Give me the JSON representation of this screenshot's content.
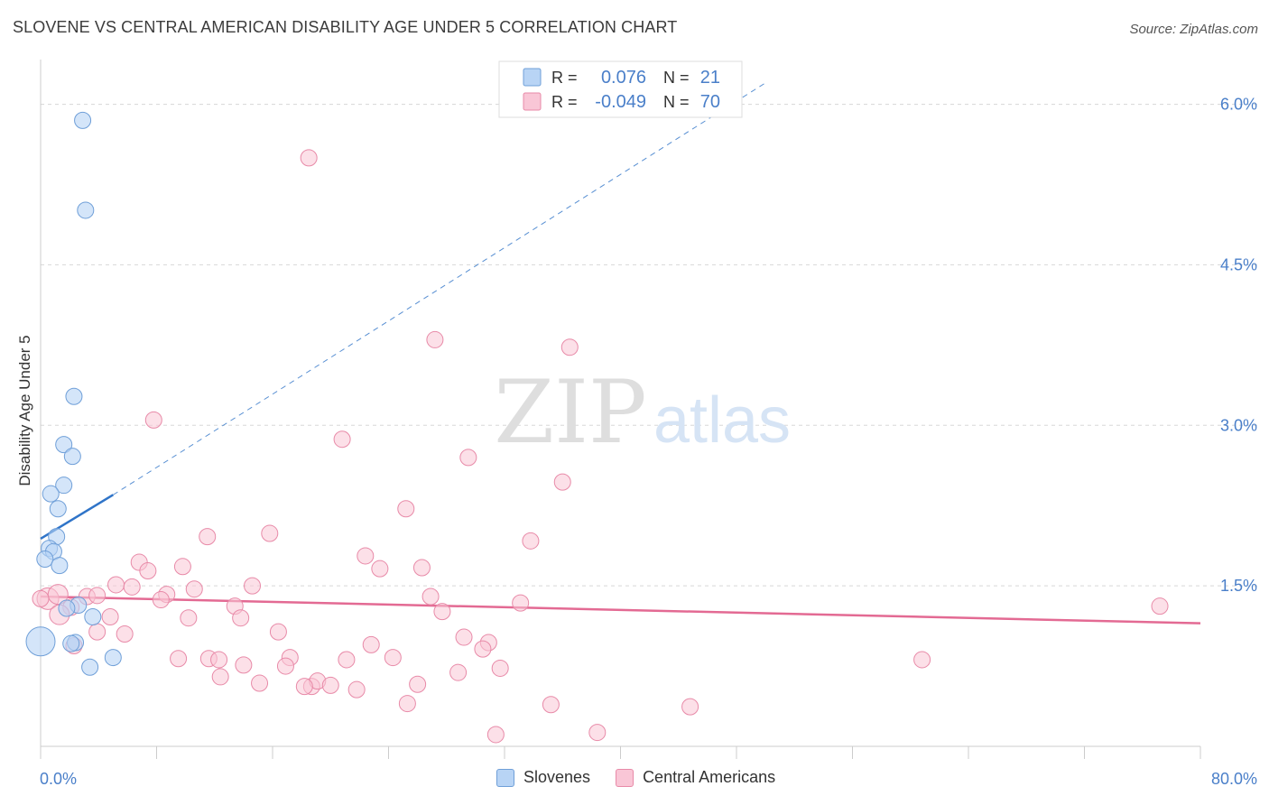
{
  "title": "SLOVENE VS CENTRAL AMERICAN DISABILITY AGE UNDER 5 CORRELATION CHART",
  "source": "Source: ZipAtlas.com",
  "watermark": {
    "zip": "ZIP",
    "atlas": "atlas"
  },
  "colors": {
    "blue_fill": "#b8d4f5",
    "blue_stroke": "#6f9fd8",
    "blue_line": "#2f74c8",
    "pink_fill": "#f9c6d6",
    "pink_stroke": "#e88aa8",
    "pink_line": "#e36a93",
    "tick_label": "#4a7fc9",
    "grid": "#d8d8d8"
  },
  "legend_top": {
    "rows": [
      {
        "r_label": "R =",
        "r_value": "0.076",
        "n_label": "N =",
        "n_value": "21",
        "series": "blue"
      },
      {
        "r_label": "R =",
        "r_value": "-0.049",
        "n_label": "N =",
        "n_value": "70",
        "series": "pink"
      }
    ]
  },
  "legend_bottom": {
    "items": [
      {
        "label": "Slovenes",
        "series": "blue"
      },
      {
        "label": "Central Americans",
        "series": "pink"
      }
    ]
  },
  "chart_data": {
    "type": "scatter",
    "title": "SLOVENE VS CENTRAL AMERICAN DISABILITY AGE UNDER 5 CORRELATION CHART",
    "xlabel": "",
    "ylabel": "Disability Age Under 5",
    "xlim": [
      0,
      80
    ],
    "ylim": [
      0,
      6.3
    ],
    "x_tick_labels": [
      "0.0%",
      "80.0%"
    ],
    "y_ticks": [
      1.5,
      3.0,
      4.5,
      6.0
    ],
    "y_tick_labels": [
      "1.5%",
      "3.0%",
      "4.5%",
      "6.0%"
    ],
    "grid": "horizontal dashed",
    "series": [
      {
        "name": "Slovenes",
        "color": "blue",
        "points": [
          [
            2.9,
            5.85
          ],
          [
            3.1,
            5.01
          ],
          [
            2.3,
            3.27
          ],
          [
            1.6,
            2.82
          ],
          [
            2.2,
            2.71
          ],
          [
            1.6,
            2.44
          ],
          [
            0.7,
            2.36
          ],
          [
            1.2,
            2.22
          ],
          [
            1.1,
            1.96
          ],
          [
            0.6,
            1.85
          ],
          [
            0.9,
            1.82
          ],
          [
            0.3,
            1.75
          ],
          [
            1.3,
            1.69
          ],
          [
            2.6,
            1.32
          ],
          [
            1.8,
            1.29
          ],
          [
            3.6,
            1.21
          ],
          [
            0.0,
            0.98
          ],
          [
            2.4,
            0.97
          ],
          [
            2.1,
            0.96
          ],
          [
            5.0,
            0.83
          ],
          [
            3.4,
            0.74
          ]
        ],
        "point_sizes": [
          9,
          9,
          9,
          9,
          9,
          9,
          9,
          9,
          9,
          9,
          9,
          9,
          9,
          9,
          9,
          9,
          16,
          9,
          9,
          9,
          9
        ],
        "trend": {
          "x": [
            0,
            5.0
          ],
          "y": [
            1.94,
            2.35
          ],
          "extended_to": [
            50,
            6.2
          ]
        }
      },
      {
        "name": "Central Americans",
        "color": "pink",
        "points": [
          [
            18.5,
            5.5
          ],
          [
            27.2,
            3.8
          ],
          [
            36.5,
            3.73
          ],
          [
            7.8,
            3.05
          ],
          [
            20.8,
            2.87
          ],
          [
            29.5,
            2.7
          ],
          [
            36.0,
            2.47
          ],
          [
            25.2,
            2.22
          ],
          [
            15.8,
            1.99
          ],
          [
            11.5,
            1.96
          ],
          [
            33.8,
            1.92
          ],
          [
            22.4,
            1.78
          ],
          [
            6.8,
            1.72
          ],
          [
            7.4,
            1.64
          ],
          [
            9.8,
            1.68
          ],
          [
            26.3,
            1.67
          ],
          [
            23.4,
            1.66
          ],
          [
            5.2,
            1.51
          ],
          [
            6.3,
            1.49
          ],
          [
            14.6,
            1.5
          ],
          [
            10.6,
            1.47
          ],
          [
            8.7,
            1.42
          ],
          [
            0.5,
            1.38
          ],
          [
            3.2,
            1.4
          ],
          [
            3.9,
            1.41
          ],
          [
            1.2,
            1.42
          ],
          [
            8.3,
            1.37
          ],
          [
            26.9,
            1.4
          ],
          [
            33.1,
            1.34
          ],
          [
            13.4,
            1.31
          ],
          [
            2.1,
            1.3
          ],
          [
            1.3,
            1.23
          ],
          [
            4.8,
            1.21
          ],
          [
            10.2,
            1.2
          ],
          [
            13.8,
            1.2
          ],
          [
            27.7,
            1.26
          ],
          [
            3.9,
            1.07
          ],
          [
            5.8,
            1.05
          ],
          [
            16.4,
            1.07
          ],
          [
            29.2,
            1.02
          ],
          [
            22.8,
            0.95
          ],
          [
            30.9,
            0.97
          ],
          [
            30.5,
            0.91
          ],
          [
            2.3,
            0.94
          ],
          [
            9.5,
            0.82
          ],
          [
            11.6,
            0.82
          ],
          [
            12.3,
            0.81
          ],
          [
            17.2,
            0.83
          ],
          [
            21.1,
            0.81
          ],
          [
            24.3,
            0.83
          ],
          [
            14.0,
            0.76
          ],
          [
            16.9,
            0.75
          ],
          [
            18.7,
            0.56
          ],
          [
            12.4,
            0.65
          ],
          [
            15.1,
            0.59
          ],
          [
            19.1,
            0.61
          ],
          [
            18.2,
            0.56
          ],
          [
            21.8,
            0.53
          ],
          [
            26.0,
            0.58
          ],
          [
            28.8,
            0.69
          ],
          [
            31.7,
            0.73
          ],
          [
            25.3,
            0.4
          ],
          [
            20.0,
            0.57
          ],
          [
            35.2,
            0.39
          ],
          [
            44.8,
            0.37
          ],
          [
            31.4,
            0.11
          ],
          [
            38.4,
            0.13
          ],
          [
            60.8,
            0.81
          ],
          [
            77.2,
            1.31
          ],
          [
            0.0,
            1.38
          ]
        ],
        "point_sizes": [
          9,
          9,
          9,
          9,
          9,
          9,
          9,
          9,
          9,
          9,
          9,
          9,
          9,
          9,
          9,
          9,
          9,
          9,
          9,
          9,
          9,
          9,
          12,
          9,
          9,
          11,
          9,
          9,
          9,
          9,
          9,
          11,
          9,
          9,
          9,
          9,
          9,
          9,
          9,
          9,
          9,
          9,
          9,
          9,
          9,
          9,
          9,
          9,
          9,
          9,
          9,
          9,
          9,
          9,
          9,
          9,
          9,
          9,
          9,
          9,
          9,
          9,
          9,
          9,
          9,
          9,
          9,
          9,
          9,
          9
        ],
        "trend": {
          "x": [
            0,
            80
          ],
          "y": [
            1.4,
            1.15
          ]
        }
      }
    ]
  }
}
